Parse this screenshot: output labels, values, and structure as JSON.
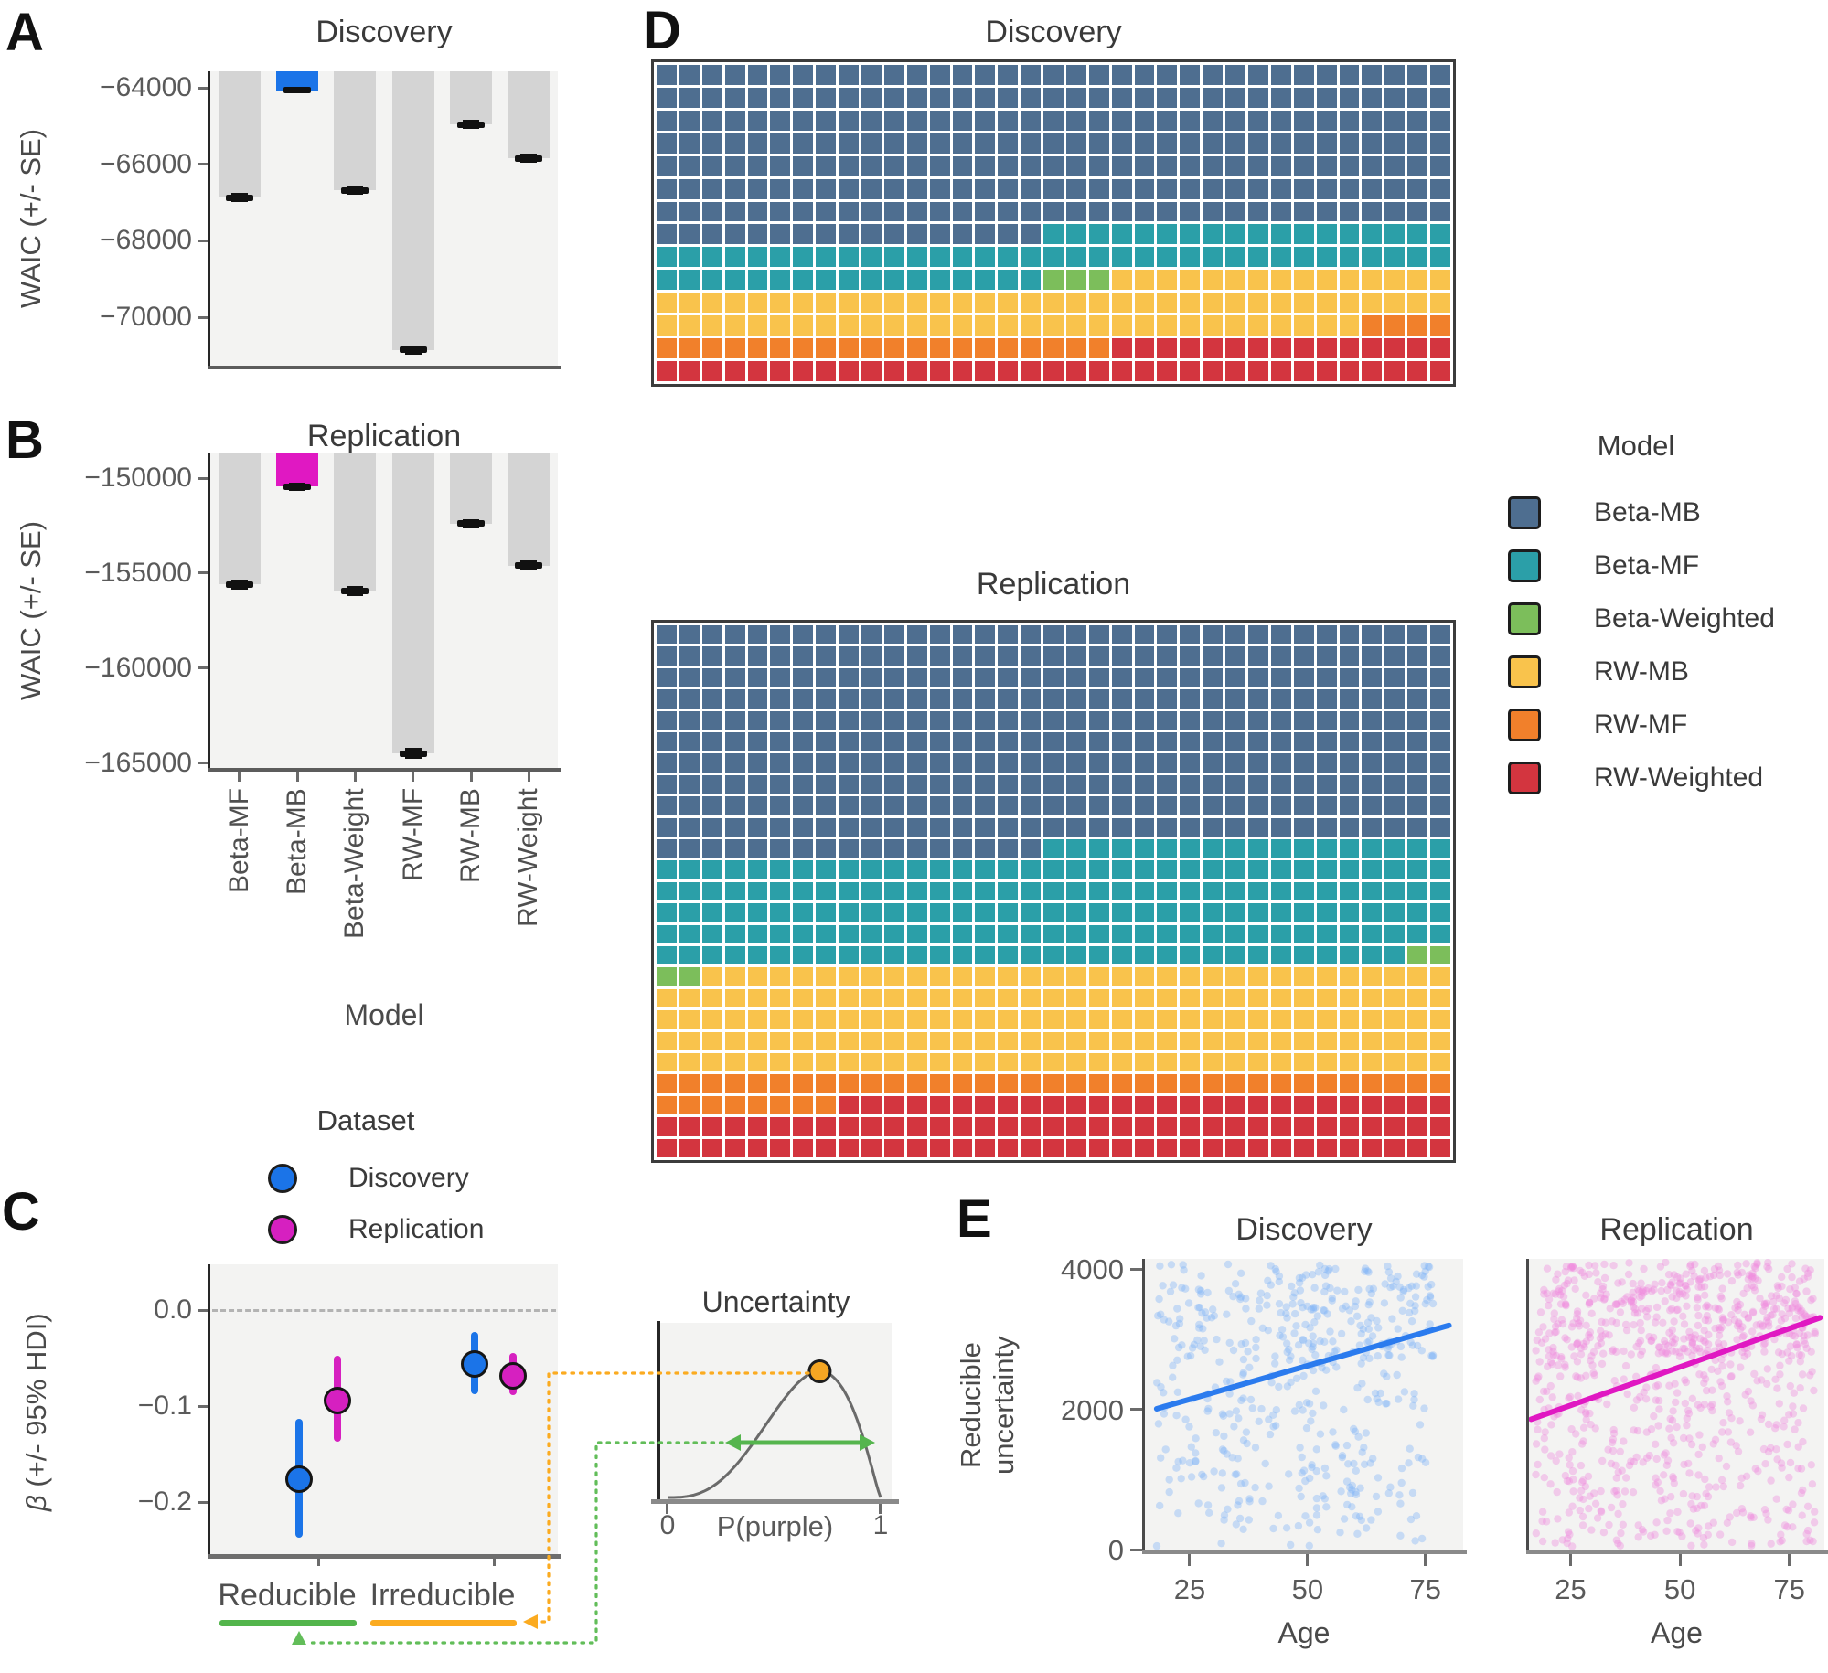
{
  "panel_letters": {
    "a": "A",
    "b": "B",
    "c": "C",
    "d": "D",
    "e": "E"
  },
  "chart_data": [
    {
      "id": "waic_discovery",
      "type": "bar",
      "title": "Discovery",
      "ylabel": "WAIC (+/- SE)",
      "categories": [
        "Beta-MF",
        "Beta-MB",
        "Beta-Weight",
        "RW-MF",
        "RW-MB",
        "RW-Weight"
      ],
      "values": [
        -66870,
        -64060,
        -66680,
        -70850,
        -64960,
        -65840
      ],
      "se": [
        90,
        60,
        80,
        90,
        90,
        90
      ],
      "yticks": [
        -64000,
        -66000,
        -68000,
        -70000
      ],
      "ylim": [
        -71260,
        -63570
      ],
      "highlight_index": 1,
      "highlight_color": "#1b74e8",
      "bar_color": "#d4d4d4"
    },
    {
      "id": "waic_replication",
      "type": "bar",
      "title": "Replication",
      "ylabel": "WAIC (+/- SE)",
      "xlabel": "Model",
      "categories": [
        "Beta-MF",
        "Beta-MB",
        "Beta-Weight",
        "RW-MF",
        "RW-MB",
        "RW-Weight"
      ],
      "values": [
        -155600,
        -150450,
        -155950,
        -164500,
        -152400,
        -154600
      ],
      "se": [
        200,
        150,
        200,
        250,
        200,
        200
      ],
      "yticks": [
        -150000,
        -155000,
        -160000,
        -165000
      ],
      "ylim": [
        -165260,
        -148650
      ],
      "highlight_index": 1,
      "highlight_color": "#e018c2",
      "bar_color": "#d4d4d4"
    },
    {
      "id": "age_beta_effects",
      "type": "pointrange",
      "ylabel_sym": "β",
      "ylabel_rest": " (+/- 95% HDI)",
      "categories": [
        "Reducible",
        "Irreducible"
      ],
      "yticks": [
        0.0,
        -0.1,
        -0.2
      ],
      "zero_line": 0,
      "series": [
        {
          "name": "Discovery",
          "color": "#1b74e8",
          "values": [
            -0.176,
            -0.056
          ],
          "ci": [
            [
              -0.237,
              -0.113
            ],
            [
              -0.088,
              -0.023
            ]
          ]
        },
        {
          "name": "Replication",
          "color": "#d620c0",
          "values": [
            -0.094,
            -0.069
          ],
          "ci": [
            [
              -0.137,
              -0.048
            ],
            [
              -0.089,
              -0.045
            ]
          ]
        }
      ],
      "underline_colors": [
        "#53b54c",
        "#fbab20"
      ]
    },
    {
      "id": "best_model_waffle_discovery",
      "type": "heatmap",
      "title": "Discovery",
      "cols": 35,
      "rows": 14,
      "model_order": [
        "Beta-MB",
        "Beta-MF",
        "Beta-Weighted",
        "RW-MB",
        "RW-MF",
        "RW-Weighted"
      ],
      "counts": [
        262,
        70,
        3,
        81,
        24,
        50
      ]
    },
    {
      "id": "best_model_waffle_replication",
      "type": "heatmap",
      "title": "Replication",
      "cols": 35,
      "rows": 25,
      "model_order": [
        "Beta-MB",
        "Beta-MF",
        "Beta-Weighted",
        "RW-MB",
        "RW-MF",
        "RW-Weighted"
      ],
      "counts": [
        367,
        191,
        4,
        173,
        43,
        97
      ]
    },
    {
      "id": "uncertainty_age_discovery",
      "type": "scatter",
      "title": "Discovery",
      "xlabel": "Age",
      "ylabel_lines": [
        "Reducible",
        "uncertainty"
      ],
      "xticks": [
        25,
        50,
        75
      ],
      "yticks": [
        0,
        2000,
        4000
      ],
      "xlim": [
        15.5,
        83
      ],
      "ylim": [
        0,
        4150
      ],
      "n": 490,
      "seed": 7,
      "age_range": [
        18,
        77
      ],
      "top_frac": 0.42,
      "top_slope": 0.24,
      "band": [
        2700,
        4080
      ],
      "point_color": "#7fb3f7",
      "line_color": "#2b7bee",
      "trend_line": {
        "x": [
          18,
          80
        ],
        "y": [
          2010,
          3200
        ]
      }
    },
    {
      "id": "uncertainty_age_replication",
      "type": "scatter",
      "title": "Replication",
      "xlabel": "Age",
      "xticks": [
        25,
        50,
        75
      ],
      "yticks": [],
      "xlim": [
        15.5,
        83
      ],
      "ylim": [
        0,
        4150
      ],
      "n": 875,
      "seed": 13,
      "age_range": [
        17,
        81
      ],
      "top_frac": 0.4,
      "top_slope": 0.26,
      "band": [
        2750,
        4100
      ],
      "point_color": "#ee8ade",
      "line_color": "#e018c2",
      "trend_line": {
        "x": [
          16,
          82
        ],
        "y": [
          1860,
          3310
        ]
      }
    }
  ],
  "model_legend": {
    "title": "Model",
    "items": [
      {
        "label": "Beta-MB",
        "color": "#4e6e90"
      },
      {
        "label": "Beta-MF",
        "color": "#2b9fa8"
      },
      {
        "label": "Beta-Weighted",
        "color": "#7cbe5b"
      },
      {
        "label": "RW-MB",
        "color": "#f9c34c"
      },
      {
        "label": "RW-MF",
        "color": "#f1802b"
      },
      {
        "label": "RW-Weighted",
        "color": "#d3353f"
      }
    ]
  },
  "dataset_legend": {
    "title": "Dataset",
    "items": [
      {
        "label": "Discovery",
        "color": "#1b74e8"
      },
      {
        "label": "Replication",
        "color": "#d620c0"
      }
    ]
  },
  "inset": {
    "title": "Uncertainty",
    "xlabel": "P(purple)",
    "xtick_labels": [
      "0",
      "1"
    ],
    "curve_color": "#6a6a6a",
    "dot_color": "#f5a623",
    "arrow_color": "#55b54e",
    "connector_orange": "#fbab20",
    "connector_green": "#62bd59",
    "beta_exp_a": 3.0,
    "beta_exp_b": 1.2
  },
  "panelC_xlabels": [
    "Reducible",
    "Irreducible"
  ]
}
